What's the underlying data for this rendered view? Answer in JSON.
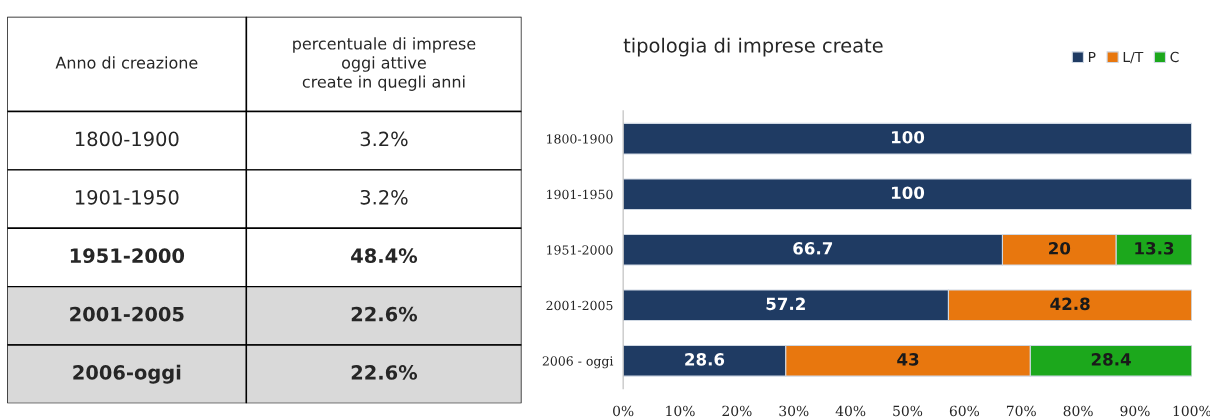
{
  "chart_data": [
    {
      "type": "other",
      "categories": [
        "1800-1900",
        "1901-1950",
        "1951-2000",
        "2001-2005",
        "2006-oggi"
      ],
      "value_labels": [
        "3.2%",
        "3.2%",
        "48.4%",
        "22.6%",
        "22.6%"
      ],
      "annotations": [
        "Anno di creazione",
        "percentuale di imprese\noggi attive\ncreate in quegli anni"
      ]
    },
    {
      "type": "bar",
      "orientation": "horizontal",
      "stacked": true,
      "title": "tipologia di imprese create",
      "categories": [
        "1800-1900",
        "1901-1950",
        "1951-2000",
        "2001-2005",
        "2006 - oggi"
      ],
      "series": [
        {
          "name": "P",
          "color": "#1f3b63",
          "values": [
            100,
            100,
            66.7,
            57.2,
            28.6
          ]
        },
        {
          "name": "L/T",
          "color": "#e8770e",
          "values": [
            null,
            null,
            20,
            42.8,
            43
          ]
        },
        {
          "name": "C",
          "color": "#1ca81c",
          "values": [
            null,
            null,
            13.3,
            null,
            28.4
          ]
        }
      ],
      "xlim": [
        0,
        100
      ],
      "xticks": [
        {
          "value": 0,
          "label": "0%"
        },
        {
          "value": 10,
          "label": "10%"
        },
        {
          "value": 20,
          "label": "20%"
        },
        {
          "value": 30,
          "label": "30%"
        },
        {
          "value": 40,
          "label": "40%"
        },
        {
          "value": 50,
          "label": "50%"
        },
        {
          "value": 60,
          "label": "60%"
        },
        {
          "value": 70,
          "label": "70%"
        },
        {
          "value": 80,
          "label": "80%"
        },
        {
          "value": 90,
          "label": "90%"
        },
        {
          "value": 100,
          "label": "100%"
        }
      ],
      "data_labels": true,
      "legend": "top right",
      "grid": false
    }
  ]
}
